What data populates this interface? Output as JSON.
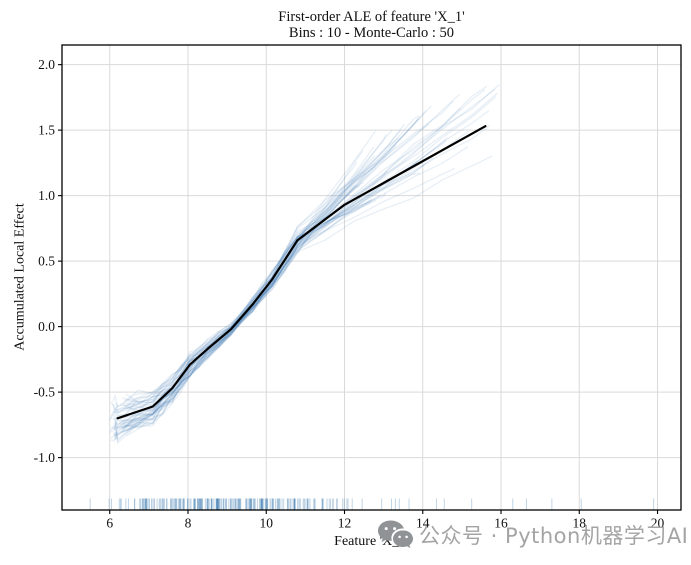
{
  "title": {
    "line1": "First-order ALE of feature 'X_1'",
    "line2": "Bins : 10 - Monte-Carlo : 50"
  },
  "watermark": {
    "icon": "wechat-icon",
    "text": "公众号 · Python机器学习AI",
    "text_color": "#a4a4a4",
    "icon_color": "#8f9396"
  },
  "chart_data": {
    "type": "line",
    "title": "First-order ALE of feature 'X_1'",
    "subtitle": "Bins : 10 - Monte-Carlo : 50",
    "xlabel": "Feature 'X_1'",
    "ylabel": "Accumulated Local Effect",
    "xlim": [
      4.78,
      20.6
    ],
    "ylim": [
      -1.4,
      2.15
    ],
    "x_ticks": [
      6,
      8,
      10,
      12,
      14,
      16,
      18,
      20
    ],
    "y_ticks": [
      -1.0,
      -0.5,
      0.0,
      0.5,
      1.0,
      1.5,
      2.0
    ],
    "grid": true,
    "grid_color": "#d9d9d9",
    "spine_color": "#000000",
    "background": "#ffffff",
    "legend": "none",
    "series": [
      {
        "name": "mean_ale",
        "type": "line",
        "color": "#000000",
        "line_width": 2.2,
        "points": [
          [
            6.2,
            -0.7
          ],
          [
            7.1,
            -0.61
          ],
          [
            7.6,
            -0.47
          ],
          [
            8.05,
            -0.29
          ],
          [
            8.5,
            -0.17
          ],
          [
            9.1,
            -0.02
          ],
          [
            9.65,
            0.17
          ],
          [
            10.15,
            0.36
          ],
          [
            10.8,
            0.66
          ],
          [
            12.0,
            0.93
          ],
          [
            15.6,
            1.53
          ]
        ]
      },
      {
        "name": "monte_carlo_replicates",
        "type": "line-ensemble",
        "count": 50,
        "color": "#4a87b9",
        "opacity": 0.13,
        "line_width": 1.3,
        "x_start_range": [
          5.95,
          6.45
        ],
        "x_end_range": [
          12.3,
          16.1
        ],
        "start_value_range": [
          -0.87,
          -0.57
        ],
        "end_value_range": [
          1.0,
          1.85
        ]
      }
    ],
    "rug": {
      "color": "#3d7cb0",
      "opacity": 0.32,
      "dense_count": 235,
      "dense_range": [
        5.95,
        13.0
      ],
      "sparse_ticks": [
        5.5,
        12.95,
        13.2,
        13.3,
        13.4,
        13.65,
        14.35,
        14.55,
        15.25,
        16.3,
        16.65,
        17.3,
        18.05,
        19.9
      ]
    }
  }
}
